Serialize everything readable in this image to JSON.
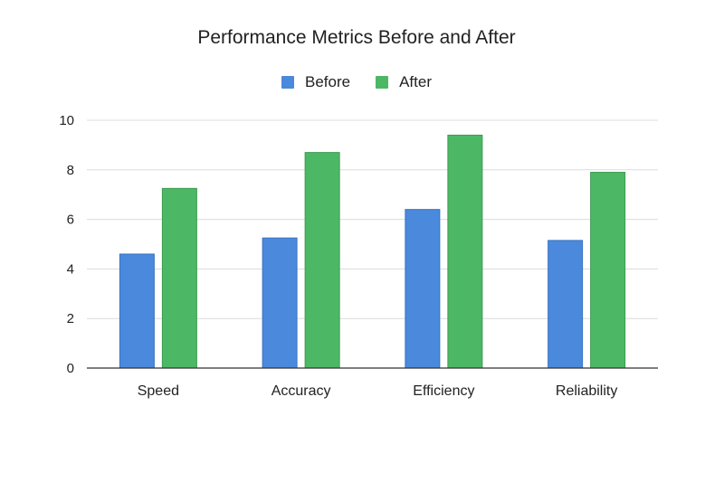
{
  "chart_data": {
    "type": "bar",
    "title": "Performance Metrics Before and After",
    "categories": [
      "Speed",
      "Accuracy",
      "Efficiency",
      "Reliability"
    ],
    "series": [
      {
        "name": "Before",
        "color": "#4a89dc",
        "values": [
          4.6,
          5.25,
          6.4,
          5.15
        ]
      },
      {
        "name": "After",
        "color": "#4cb865",
        "values": [
          7.25,
          8.7,
          9.4,
          7.9
        ]
      }
    ],
    "ylim": [
      0,
      10
    ],
    "yticks": [
      0,
      2,
      4,
      6,
      8,
      10
    ],
    "grid": true,
    "legend": "top-center",
    "xlabel": "",
    "ylabel": ""
  }
}
